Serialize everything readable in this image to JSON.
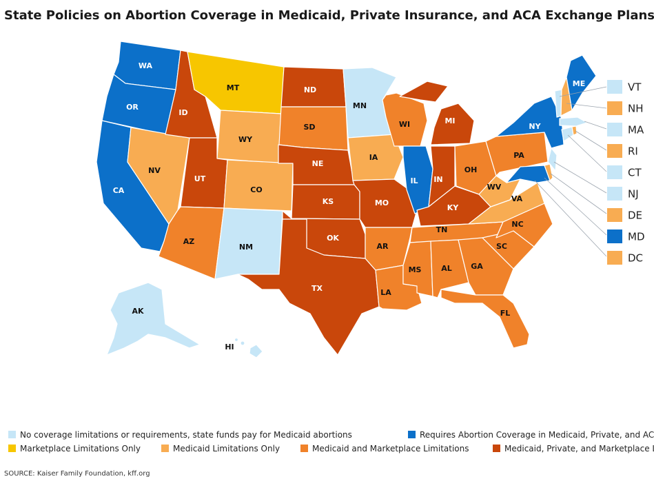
{
  "title": "State Policies on Abortion Coverage in Medicaid, Private Insurance, and ACA Exchange Plans –",
  "colors": {
    "none": "#c6e6f7",
    "requires": "#0c70c9",
    "marketplace": "#f7c600",
    "medicaid": "#f8ac52",
    "medicaid_marketplace": "#f0822a",
    "all": "#c9470b"
  },
  "legend": [
    {
      "key": "none",
      "label": "No coverage limitations or requirements, state funds pay for Medicaid abortions"
    },
    {
      "key": "requires",
      "label": "Requires Abortion Coverage in Medicaid, Private, and ACA Ma"
    },
    {
      "key": "marketplace",
      "label": "Marketplace Limitations Only"
    },
    {
      "key": "medicaid",
      "label": "Medicaid Limitations Only"
    },
    {
      "key": "medicaid_marketplace",
      "label": "Medicaid and Marketplace Limitations"
    },
    {
      "key": "all",
      "label": "Medicaid, Private, and Marketplace Limi"
    }
  ],
  "states": {
    "WA": "requires",
    "OR": "requires",
    "CA": "requires",
    "ID": "all",
    "NV": "medicaid",
    "MT": "marketplace",
    "WY": "medicaid",
    "UT": "all",
    "AZ": "medicaid_marketplace",
    "CO": "medicaid",
    "NM": "none",
    "ND": "all",
    "SD": "medicaid_marketplace",
    "NE": "all",
    "KS": "all",
    "OK": "all",
    "TX": "all",
    "MN": "none",
    "IA": "medicaid",
    "MO": "all",
    "AR": "medicaid_marketplace",
    "LA": "medicaid_marketplace",
    "WI": "medicaid_marketplace",
    "IL": "requires",
    "MI": "all",
    "IN": "all",
    "OH": "medicaid_marketplace",
    "KY": "all",
    "TN": "medicaid_marketplace",
    "MS": "medicaid_marketplace",
    "AL": "medicaid_marketplace",
    "GA": "medicaid_marketplace",
    "FL": "medicaid_marketplace",
    "SC": "medicaid_marketplace",
    "NC": "medicaid_marketplace",
    "VA": "medicaid",
    "WV": "medicaid",
    "PA": "medicaid_marketplace",
    "NY": "requires",
    "ME": "requires",
    "VT": "none",
    "NH": "medicaid",
    "MA": "none",
    "RI": "medicaid",
    "CT": "none",
    "NJ": "none",
    "DE": "medicaid",
    "MD": "requires",
    "DC": "medicaid",
    "AK": "none",
    "HI": "none"
  },
  "side_states": [
    "VT",
    "NH",
    "MA",
    "RI",
    "CT",
    "NJ",
    "DE",
    "MD",
    "DC"
  ],
  "source": "SOURCE: Kaiser Family Foundation, kff.org"
}
